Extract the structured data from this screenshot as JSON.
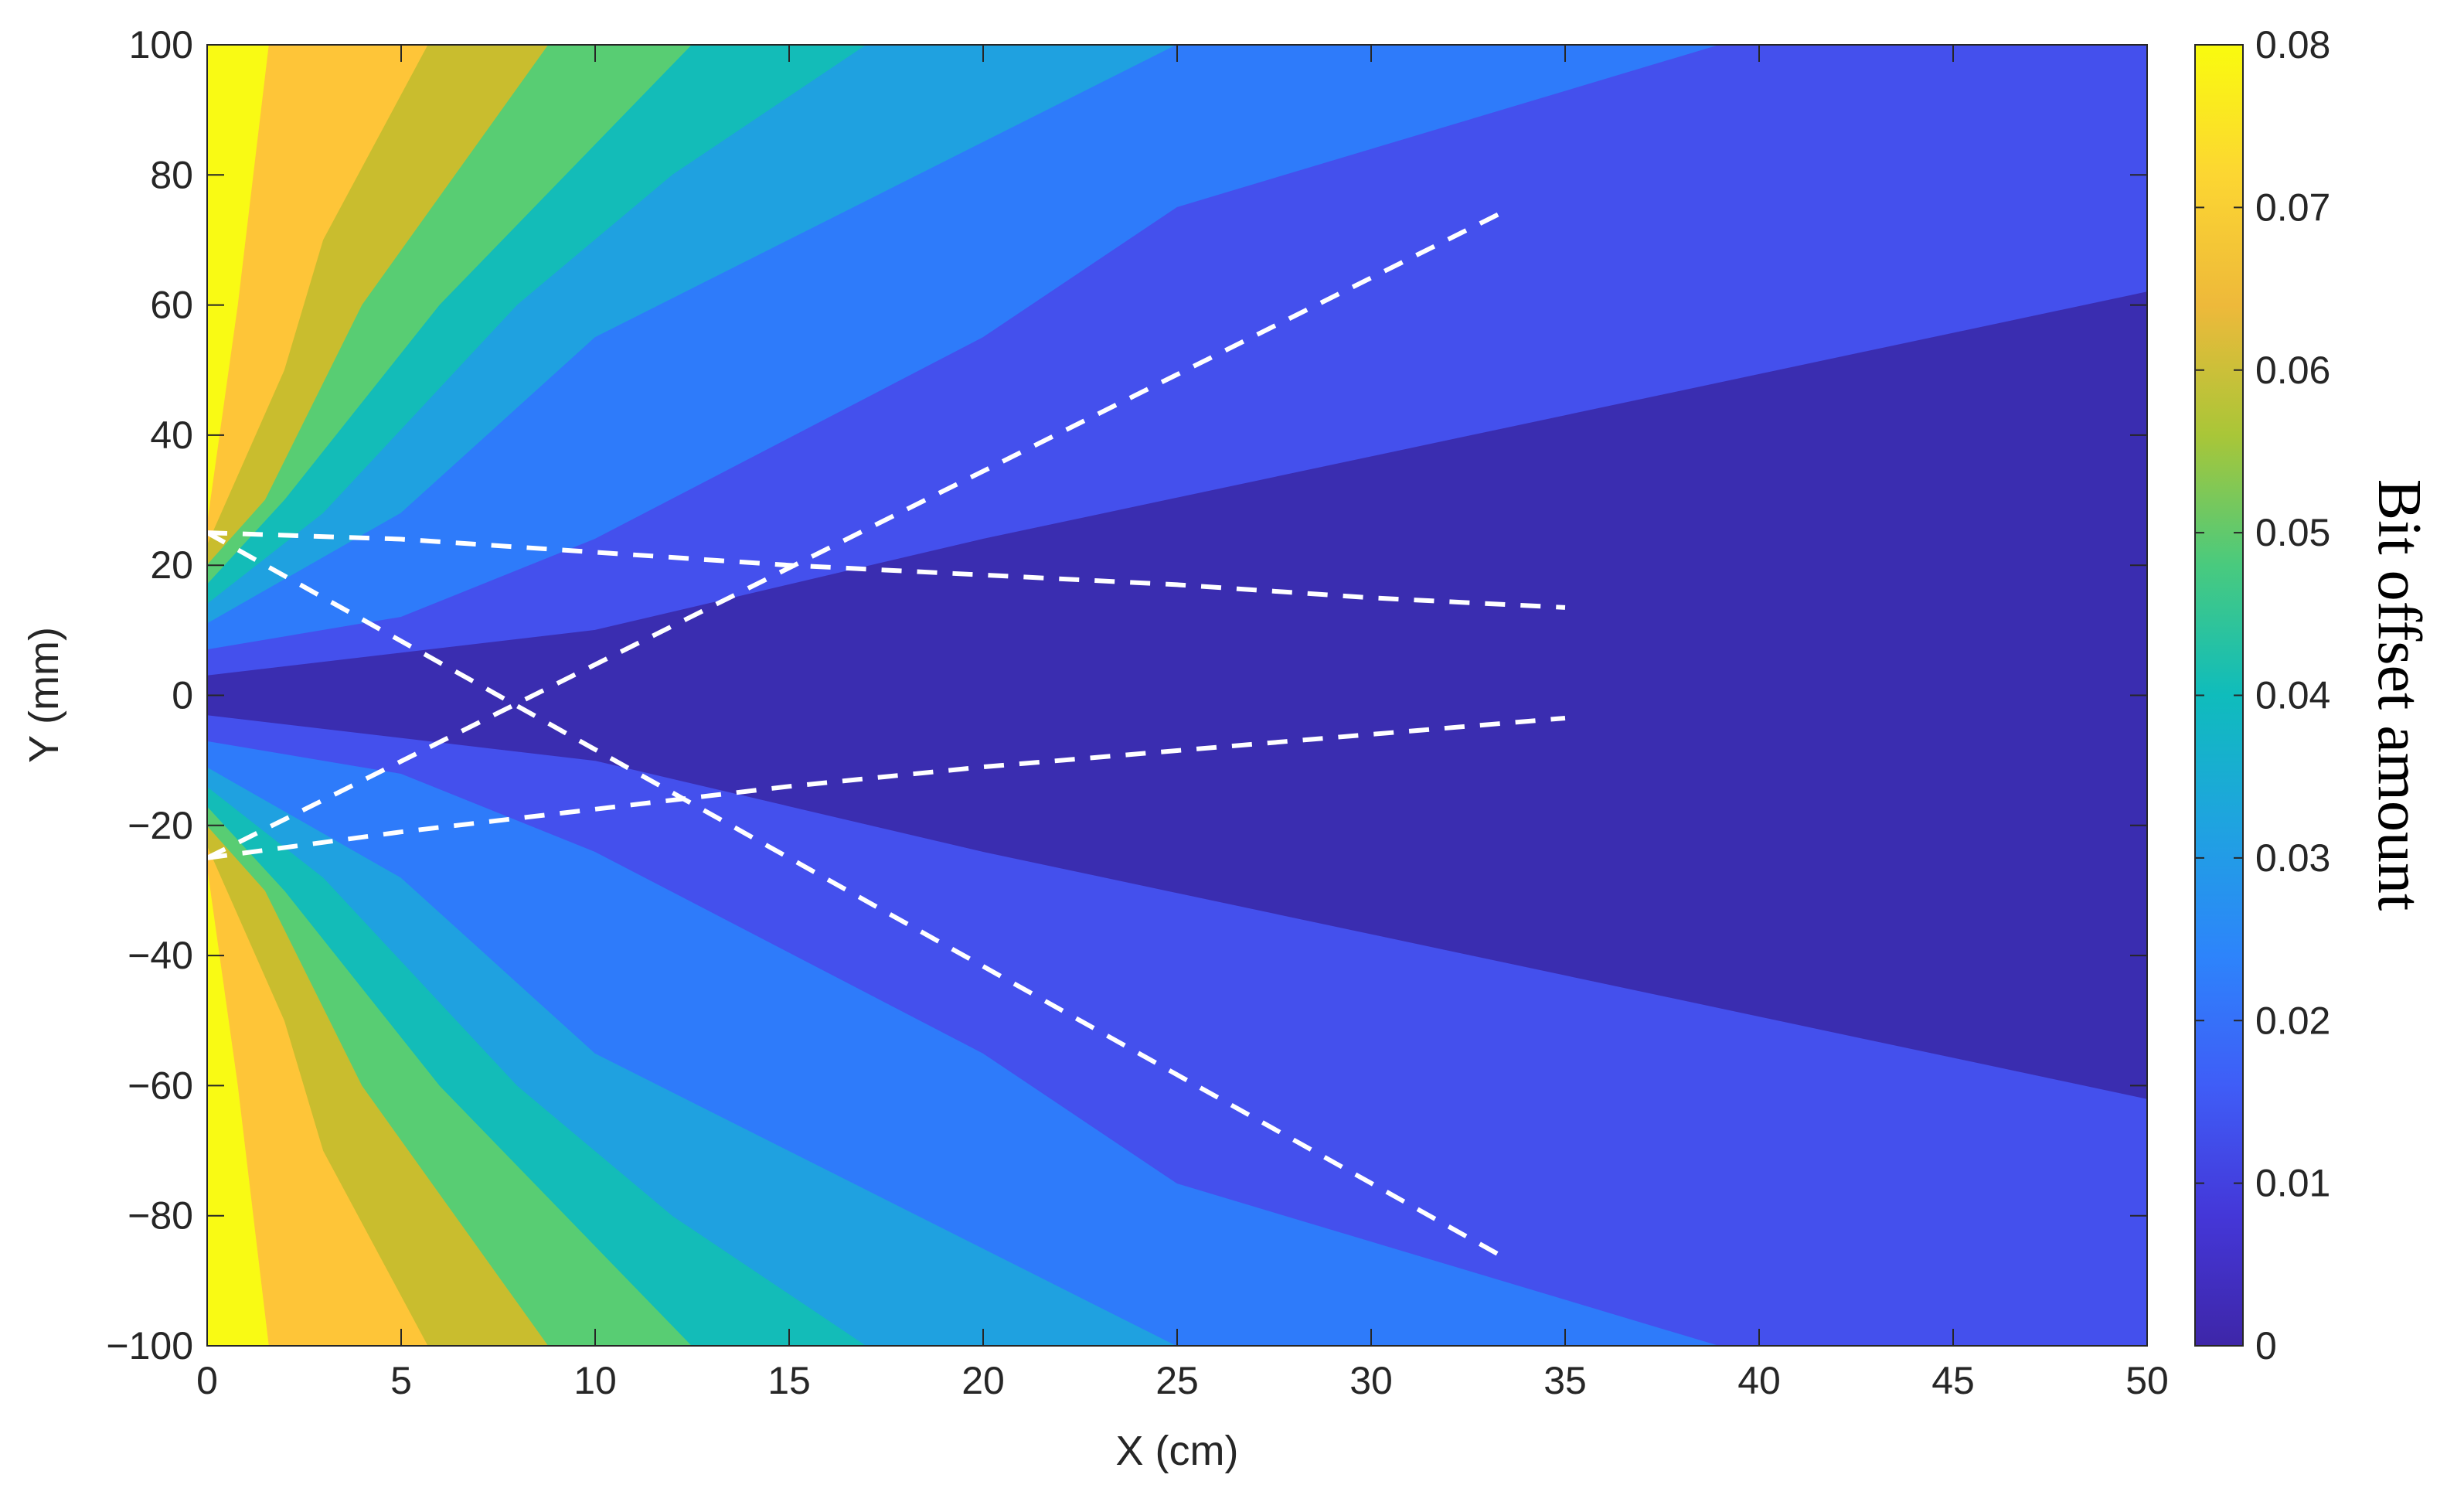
{
  "chart_data": {
    "type": "heatmap",
    "subtype": "filled-contour",
    "xlabel": "X (cm)",
    "ylabel": "Y (mm)",
    "xlim": [
      0,
      50
    ],
    "ylim": [
      -100,
      100
    ],
    "xticks": [
      "0",
      "5",
      "10",
      "15",
      "20",
      "25",
      "30",
      "35",
      "40",
      "45",
      "50"
    ],
    "yticks": [
      "100",
      "80",
      "60",
      "40",
      "20",
      "0",
      "−20",
      "−40",
      "−60",
      "−80",
      "−100"
    ],
    "grid": false,
    "colorbar": {
      "label": "Bit offset amount",
      "range": [
        0,
        0.08
      ],
      "ticks": [
        "0.08",
        "0.07",
        "0.06",
        "0.05",
        "0.04",
        "0.03",
        "0.02",
        "0.01",
        "0"
      ],
      "colormap": "parula",
      "placement": "right"
    },
    "contour_levels": [
      0,
      0.005,
      0.01,
      0.02,
      0.03,
      0.04,
      0.05,
      0.06,
      0.07,
      0.08
    ],
    "band_colors": [
      "#3a2db0",
      "#4450ed",
      "#2e7bfa",
      "#1fa1e0",
      "#13bcb8",
      "#58cd73",
      "#c9bd2e",
      "#fec538",
      "#f9fa14"
    ],
    "band_edges": [
      {
        "level": 0.005,
        "y_at_x0": 3,
        "y_at_x50": 62,
        "sample_points": [
          [
            0,
            3
          ],
          [
            10,
            10
          ],
          [
            20,
            24
          ],
          [
            50,
            62
          ]
        ]
      },
      {
        "level": 0.01,
        "y_at_x0": 7,
        "sample_points": [
          [
            0,
            7
          ],
          [
            5,
            12
          ],
          [
            10,
            24
          ],
          [
            20,
            55
          ],
          [
            25,
            75
          ],
          [
            39,
            100
          ]
        ]
      },
      {
        "level": 0.02,
        "y_at_x0": 11,
        "sample_points": [
          [
            0,
            11
          ],
          [
            5,
            28
          ],
          [
            10,
            55
          ],
          [
            25,
            100
          ]
        ]
      },
      {
        "level": 0.03,
        "y_at_x0": 14,
        "sample_points": [
          [
            0,
            14
          ],
          [
            3,
            28
          ],
          [
            8,
            60
          ],
          [
            12,
            80
          ],
          [
            17,
            100
          ]
        ]
      },
      {
        "level": 0.04,
        "y_at_x0": 17,
        "sample_points": [
          [
            0,
            17
          ],
          [
            2,
            30
          ],
          [
            6,
            60
          ],
          [
            12.5,
            100
          ]
        ]
      },
      {
        "level": 0.05,
        "y_at_x0": 20,
        "sample_points": [
          [
            0,
            20
          ],
          [
            1.5,
            30
          ],
          [
            4,
            60
          ],
          [
            8.8,
            100
          ]
        ]
      },
      {
        "level": 0.06,
        "y_at_x0": 23,
        "sample_points": [
          [
            0,
            23
          ],
          [
            2,
            50
          ],
          [
            3,
            70
          ],
          [
            5.7,
            100
          ]
        ]
      },
      {
        "level": 0.07,
        "y_at_x0": 26,
        "sample_points": [
          [
            0,
            26
          ],
          [
            0.8,
            60
          ],
          [
            1.2,
            80
          ],
          [
            1.6,
            100
          ]
        ]
      }
    ],
    "series": [
      {
        "style": "dashed",
        "color": "#ffffff",
        "x": [
          0,
          33.3
        ],
        "y": [
          -25,
          74
        ]
      },
      {
        "style": "dashed",
        "color": "#ffffff",
        "x": [
          0,
          33.3
        ],
        "y": [
          25,
          -86
        ]
      },
      {
        "style": "dashed",
        "color": "#ffffff",
        "x": [
          0,
          5,
          10,
          15,
          20,
          25,
          30,
          35
        ],
        "y": [
          25,
          24,
          22,
          20,
          18.5,
          17,
          15,
          13.5
        ]
      },
      {
        "style": "dashed",
        "color": "#ffffff",
        "x": [
          0,
          5,
          10,
          15,
          20,
          25,
          30,
          35
        ],
        "y": [
          -25,
          -21,
          -17.5,
          -14,
          -11,
          -8.5,
          -6,
          -3.5
        ]
      }
    ]
  }
}
